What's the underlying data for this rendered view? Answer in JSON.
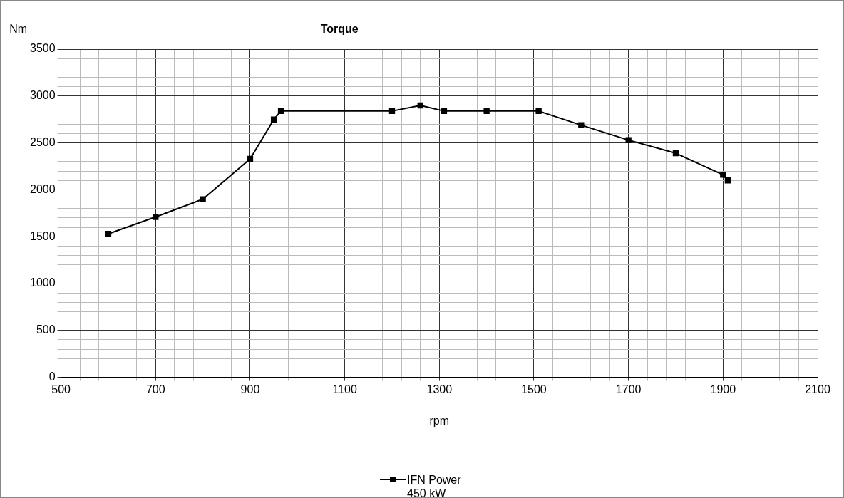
{
  "chart_data": {
    "type": "line",
    "title": "Torque",
    "xlabel": "rpm",
    "ylabel": "Nm",
    "series": [
      {
        "name": "IFN Power 450 kW",
        "color": "#000000",
        "x": [
          600,
          700,
          800,
          900,
          950,
          965,
          1200,
          1260,
          1310,
          1400,
          1510,
          1600,
          1700,
          1800,
          1900,
          1910
        ],
        "values": [
          1530,
          1710,
          1900,
          2330,
          2750,
          2840,
          2840,
          2900,
          2840,
          2840,
          2840,
          2690,
          2530,
          2390,
          2160,
          2100
        ]
      }
    ],
    "xlim": [
      500,
      2100
    ],
    "xticks": [
      500,
      {
        "value": 540,
        "label": null
      },
      {
        "value": 580,
        "label": null
      },
      {
        "value": 620,
        "label": null
      },
      {
        "value": 660,
        "label": null
      },
      700,
      {
        "value": 740,
        "label": null
      },
      {
        "value": 780,
        "label": null
      },
      {
        "value": 820,
        "label": null
      },
      {
        "value": 860,
        "label": null
      },
      900,
      {
        "value": 940,
        "label": null
      },
      {
        "value": 980,
        "label": null
      },
      {
        "value": 1020,
        "label": null
      },
      {
        "value": 1060,
        "label": null
      },
      1100,
      {
        "value": 1140,
        "label": null
      },
      {
        "value": 1180,
        "label": null
      },
      {
        "value": 1220,
        "label": null
      },
      {
        "value": 1260,
        "label": null
      },
      1300,
      {
        "value": 1340,
        "label": null
      },
      {
        "value": 1380,
        "label": null
      },
      {
        "value": 1420,
        "label": null
      },
      {
        "value": 1460,
        "label": null
      },
      1500,
      {
        "value": 1540,
        "label": null
      },
      {
        "value": 1580,
        "label": null
      },
      {
        "value": 1620,
        "label": null
      },
      {
        "value": 1660,
        "label": null
      },
      1700,
      {
        "value": 1740,
        "label": null
      },
      {
        "value": 1780,
        "label": null
      },
      {
        "value": 1820,
        "label": null
      },
      {
        "value": 1860,
        "label": null
      },
      1900,
      {
        "value": 1940,
        "label": null
      },
      {
        "value": 1980,
        "label": null
      },
      {
        "value": 2020,
        "label": null
      },
      {
        "value": 2060,
        "label": null
      },
      2100
    ],
    "ylim": [
      0,
      3500
    ],
    "yticks": [
      0,
      {
        "value": 100,
        "label": null
      },
      {
        "value": 200,
        "label": null
      },
      {
        "value": 300,
        "label": null
      },
      {
        "value": 400,
        "label": null
      },
      500,
      {
        "value": 600,
        "label": null
      },
      {
        "value": 700,
        "label": null
      },
      {
        "value": 800,
        "label": null
      },
      {
        "value": 900,
        "label": null
      },
      1000,
      {
        "value": 1100,
        "label": null
      },
      {
        "value": 1200,
        "label": null
      },
      {
        "value": 1300,
        "label": null
      },
      {
        "value": 1400,
        "label": null
      },
      1500,
      {
        "value": 1600,
        "label": null
      },
      {
        "value": 1700,
        "label": null
      },
      {
        "value": 1800,
        "label": null
      },
      {
        "value": 1900,
        "label": null
      },
      2000,
      {
        "value": 2100,
        "label": null
      },
      {
        "value": 2200,
        "label": null
      },
      {
        "value": 2300,
        "label": null
      },
      {
        "value": 2400,
        "label": null
      },
      2500,
      {
        "value": 2600,
        "label": null
      },
      {
        "value": 2700,
        "label": null
      },
      {
        "value": 2800,
        "label": null
      },
      {
        "value": 2900,
        "label": null
      },
      3000,
      {
        "value": 3100,
        "label": null
      },
      {
        "value": 3200,
        "label": null
      },
      {
        "value": 3300,
        "label": null
      },
      {
        "value": 3400,
        "label": null
      },
      3500
    ],
    "grid": true,
    "legend": "bottom",
    "marker": "square",
    "line_style": "solid"
  }
}
